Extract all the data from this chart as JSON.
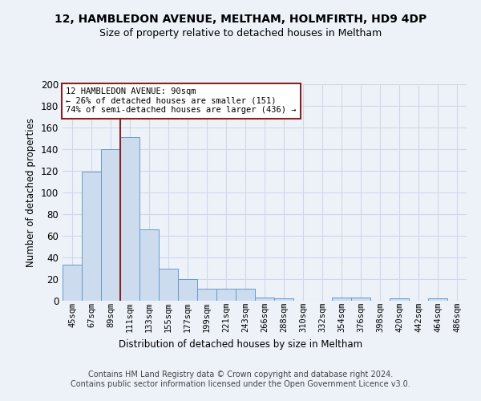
{
  "title1": "12, HAMBLEDON AVENUE, MELTHAM, HOLMFIRTH, HD9 4DP",
  "title2": "Size of property relative to detached houses in Meltham",
  "xlabel": "Distribution of detached houses by size in Meltham",
  "ylabel": "Number of detached properties",
  "categories": [
    "45sqm",
    "67sqm",
    "89sqm",
    "111sqm",
    "133sqm",
    "155sqm",
    "177sqm",
    "199sqm",
    "221sqm",
    "243sqm",
    "266sqm",
    "288sqm",
    "310sqm",
    "332sqm",
    "354sqm",
    "376sqm",
    "398sqm",
    "420sqm",
    "442sqm",
    "464sqm",
    "486sqm"
  ],
  "values": [
    33,
    119,
    140,
    151,
    66,
    30,
    20,
    11,
    11,
    11,
    3,
    2,
    0,
    0,
    3,
    3,
    0,
    2,
    0,
    2,
    0
  ],
  "bar_color": "#ccdcee",
  "bar_edge_color": "#6699cc",
  "grid_color": "#d0d8e8",
  "vline_x": 2.5,
  "vline_color": "#882222",
  "annotation_text": "12 HAMBLEDON AVENUE: 90sqm\n← 26% of detached houses are smaller (151)\n74% of semi-detached houses are larger (436) →",
  "annotation_box_color": "#ffffff",
  "annotation_box_edge_color": "#882222",
  "footer": "Contains HM Land Registry data © Crown copyright and database right 2024.\nContains public sector information licensed under the Open Government Licence v3.0.",
  "ylim": [
    0,
    200
  ],
  "background_color": "#edf2f9"
}
